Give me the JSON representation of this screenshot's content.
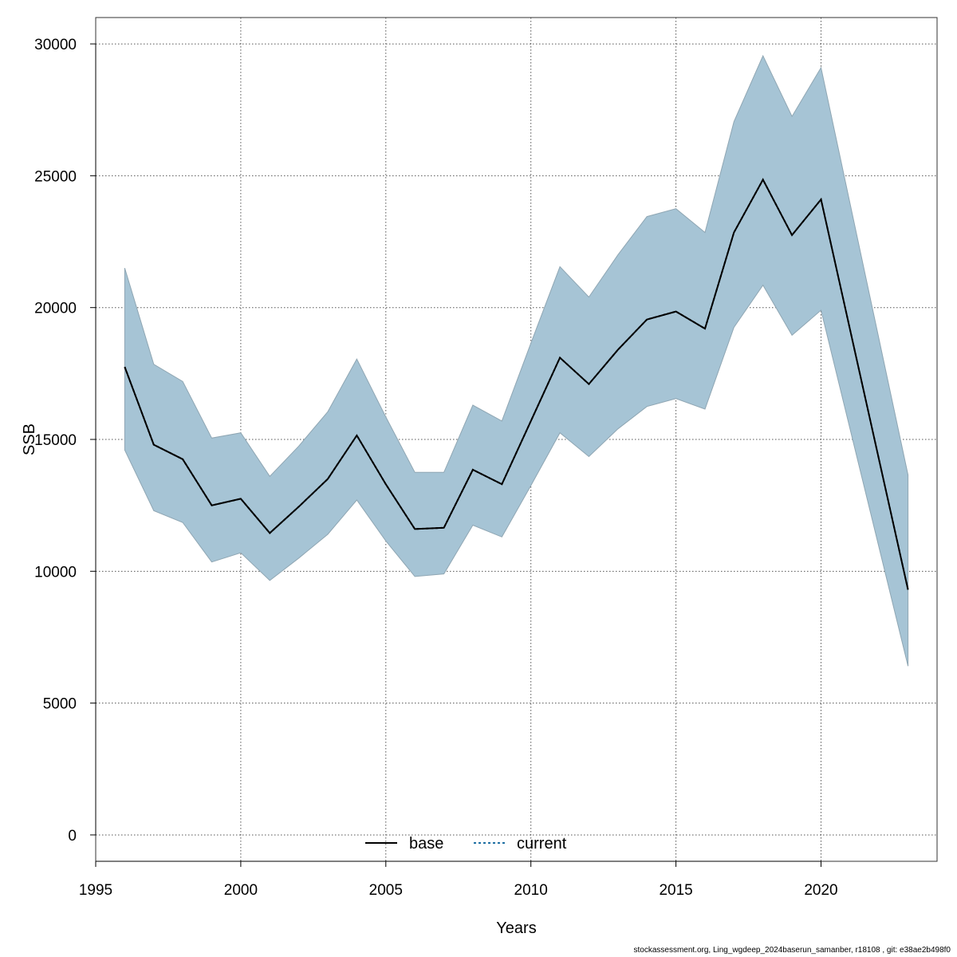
{
  "chart_data": {
    "type": "area",
    "xlabel": "Years",
    "ylabel": "SSB",
    "xlim": [
      1995,
      2024
    ],
    "ylim": [
      -1000,
      31000
    ],
    "xticks": [
      1995,
      2000,
      2005,
      2010,
      2015,
      2020
    ],
    "yticks": [
      0,
      5000,
      10000,
      15000,
      20000,
      25000,
      30000
    ],
    "grid": true,
    "legend_position": "bottom-center",
    "legend": [
      {
        "name": "base",
        "style": "solid",
        "color": "#000000"
      },
      {
        "name": "current",
        "style": "dashed",
        "color": "#1f6fa3"
      }
    ],
    "x": [
      1996,
      1997,
      1998,
      1999,
      2000,
      2001,
      2002,
      2003,
      2004,
      2005,
      2006,
      2007,
      2008,
      2009,
      2010,
      2011,
      2012,
      2013,
      2014,
      2015,
      2016,
      2017,
      2018,
      2019,
      2020,
      2023
    ],
    "series": [
      {
        "name": "base",
        "values": [
          17750,
          14800,
          14250,
          12500,
          12750,
          11450,
          12450,
          13500,
          15150,
          13300,
          11600,
          11650,
          13850,
          13300,
          15700,
          18100,
          17100,
          18400,
          19550,
          19850,
          19200,
          22850,
          24850,
          22750,
          24100,
          9300
        ]
      },
      {
        "name": "current",
        "values": [
          17750,
          14800,
          14250,
          12500,
          12750,
          11450,
          12450,
          13500,
          15150,
          13300,
          11600,
          11650,
          13850,
          13300,
          15700,
          18100,
          17100,
          18400,
          19550,
          19850,
          19200,
          22850,
          24850,
          22750,
          24100,
          9300
        ]
      }
    ],
    "band": {
      "lower": [
        14600,
        12300,
        11850,
        10350,
        10700,
        9650,
        10500,
        11400,
        12700,
        11150,
        9800,
        9900,
        11750,
        11300,
        13250,
        15250,
        14350,
        15400,
        16250,
        16550,
        16150,
        19250,
        20850,
        18950,
        19900,
        6400
      ],
      "upper": [
        21500,
        17850,
        17200,
        15050,
        15250,
        13600,
        14750,
        16050,
        18050,
        15850,
        13750,
        13750,
        16300,
        15700,
        18650,
        21550,
        20400,
        22000,
        23450,
        23750,
        22850,
        27050,
        29550,
        27250,
        29100,
        13650
      ]
    },
    "colors": {
      "band_fill": "#a6c4d5",
      "band_edge": "#8fa6b3",
      "grid": "#555555",
      "axis": "#333333"
    }
  },
  "footer": "stockassessment.org, Ling_wgdeep_2024baserun_samanber, r18108 , git: e38ae2b498f0"
}
